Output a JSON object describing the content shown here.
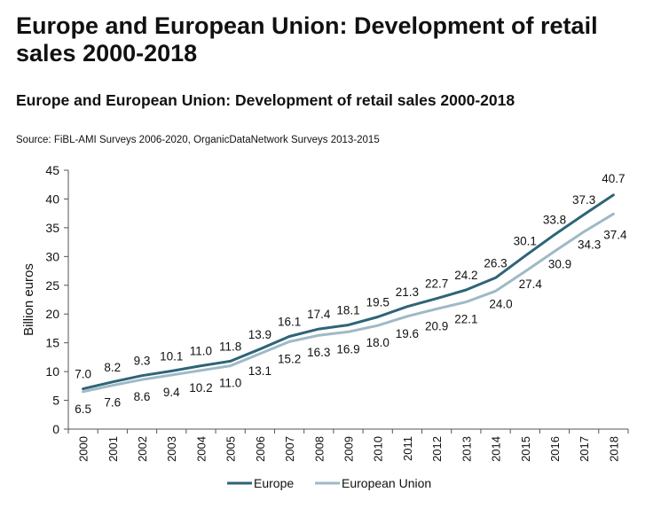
{
  "header": {
    "title": "Europe and European Union: Development of retail sales  2000-2018"
  },
  "chart_data": {
    "type": "line",
    "title": "Europe and European Union: Development of retail sales 2000-2018",
    "subtitle": "Source: FiBL-AMI Surveys 2006-2020, OrganicDataNetwork Surveys 2013-2015",
    "xlabel": "",
    "ylabel": "Billion euros",
    "ylim": [
      0,
      45
    ],
    "yticks": [
      "0",
      "5",
      "10",
      "15",
      "20",
      "25",
      "30",
      "35",
      "40",
      "45"
    ],
    "x": [
      "2000",
      "2001",
      "2002",
      "2003",
      "2004",
      "2005",
      "2006",
      "2007",
      "2008",
      "2009",
      "2010",
      "2011",
      "2012",
      "2013",
      "2014",
      "2015",
      "2016",
      "2017",
      "2018"
    ],
    "series": [
      {
        "name": "Europe",
        "color": "#2e6478",
        "values": [
          7.0,
          8.2,
          9.3,
          10.1,
          11.0,
          11.8,
          13.9,
          16.1,
          17.4,
          18.1,
          19.5,
          21.3,
          22.7,
          24.2,
          26.3,
          30.1,
          33.8,
          37.3,
          40.7
        ],
        "labels": [
          "7.0",
          "8.2",
          "9.3",
          "10.1",
          "11.0",
          "11.8",
          "13.9",
          "16.1",
          "17.4",
          "18.1",
          "19.5",
          "21.3",
          "22.7",
          "24.2",
          "26.3",
          "30.1",
          "33.8",
          "37.3",
          "40.7"
        ]
      },
      {
        "name": "European Union",
        "color": "#9fb9c6",
        "values": [
          6.5,
          7.6,
          8.6,
          9.4,
          10.2,
          11.0,
          13.1,
          15.2,
          16.3,
          16.9,
          18.0,
          19.6,
          20.9,
          22.1,
          24.0,
          27.4,
          30.9,
          34.3,
          37.4
        ],
        "labels": [
          "6.5",
          "7.6",
          "8.6",
          "9.4",
          "10.2",
          "11.0",
          "13.1",
          "15.2",
          "16.3",
          "16.9",
          "18.0",
          "19.6",
          "20.9",
          "22.1",
          "24.0",
          "27.4",
          "30.9",
          "34.3",
          "37.4"
        ]
      }
    ],
    "grid": false,
    "legend": "bottom"
  }
}
